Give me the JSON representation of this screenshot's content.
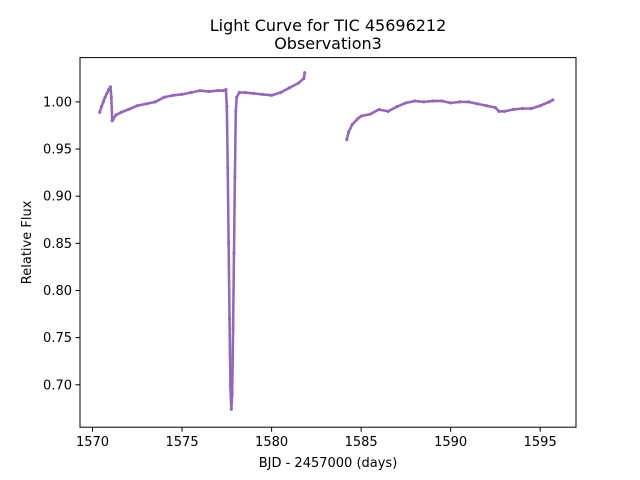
{
  "chart_data": {
    "type": "scatter",
    "title": "Light Curve for TIC 45696212",
    "subtitle": "Observation3",
    "xlabel": "BJD - 2457000 (days)",
    "ylabel": "Relative Flux",
    "xlim": [
      1569.3,
      1597.0
    ],
    "ylim": [
      0.655,
      1.047
    ],
    "xticks": [
      1570,
      1575,
      1580,
      1585,
      1590,
      1595
    ],
    "yticks": [
      0.7,
      0.75,
      0.8,
      0.85,
      0.9,
      0.95,
      1.0
    ],
    "grid": false,
    "marker_color": "#9467bd",
    "series": [
      {
        "points": [
          [
            1570.4,
            0.989
          ],
          [
            1570.5,
            0.995
          ],
          [
            1570.6,
            1.0
          ],
          [
            1570.7,
            1.005
          ],
          [
            1570.8,
            1.009
          ],
          [
            1570.9,
            1.013
          ],
          [
            1571.0,
            1.016
          ],
          [
            1571.05,
            1.005
          ],
          [
            1571.1,
            0.98
          ],
          [
            1571.3,
            0.986
          ],
          [
            1571.6,
            0.989
          ],
          [
            1572.0,
            0.992
          ],
          [
            1572.5,
            0.996
          ],
          [
            1573.0,
            0.998
          ],
          [
            1573.5,
            1.0
          ],
          [
            1574.0,
            1.005
          ],
          [
            1574.5,
            1.007
          ],
          [
            1575.0,
            1.008
          ],
          [
            1575.5,
            1.01
          ],
          [
            1576.0,
            1.012
          ],
          [
            1576.5,
            1.011
          ],
          [
            1577.0,
            1.012
          ],
          [
            1577.3,
            1.012
          ],
          [
            1577.45,
            1.013
          ],
          [
            1577.5,
            0.995
          ],
          [
            1577.55,
            0.93
          ],
          [
            1577.6,
            0.85
          ],
          [
            1577.65,
            0.77
          ],
          [
            1577.7,
            0.7
          ],
          [
            1577.75,
            0.674
          ],
          [
            1577.8,
            0.69
          ],
          [
            1577.85,
            0.76
          ],
          [
            1577.9,
            0.84
          ],
          [
            1577.95,
            0.92
          ],
          [
            1578.0,
            0.99
          ],
          [
            1578.05,
            1.005
          ],
          [
            1578.2,
            1.01
          ],
          [
            1578.5,
            1.01
          ],
          [
            1579.0,
            1.009
          ],
          [
            1579.5,
            1.008
          ],
          [
            1580.0,
            1.007
          ],
          [
            1580.5,
            1.01
          ],
          [
            1581.0,
            1.015
          ],
          [
            1581.5,
            1.02
          ],
          [
            1581.8,
            1.025
          ],
          [
            1581.85,
            1.031
          ],
          [
            1584.2,
            0.96
          ],
          [
            1584.3,
            0.968
          ],
          [
            1584.5,
            0.976
          ],
          [
            1584.8,
            0.982
          ],
          [
            1585.0,
            0.985
          ],
          [
            1585.5,
            0.987
          ],
          [
            1586.0,
            0.992
          ],
          [
            1586.5,
            0.99
          ],
          [
            1587.0,
            0.995
          ],
          [
            1587.5,
            0.999
          ],
          [
            1588.0,
            1.001
          ],
          [
            1588.5,
            1.0
          ],
          [
            1589.0,
            1.001
          ],
          [
            1589.5,
            1.001
          ],
          [
            1590.0,
            0.999
          ],
          [
            1590.5,
            1.0
          ],
          [
            1591.0,
            1.0
          ],
          [
            1591.5,
            0.998
          ],
          [
            1592.0,
            0.996
          ],
          [
            1592.5,
            0.994
          ],
          [
            1592.7,
            0.99
          ],
          [
            1593.0,
            0.99
          ],
          [
            1593.5,
            0.992
          ],
          [
            1594.0,
            0.993
          ],
          [
            1594.5,
            0.993
          ],
          [
            1595.0,
            0.996
          ],
          [
            1595.5,
            1.0
          ],
          [
            1595.7,
            1.002
          ]
        ]
      }
    ]
  }
}
